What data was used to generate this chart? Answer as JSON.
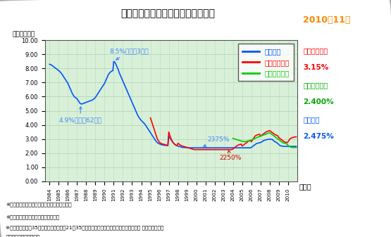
{
  "title": "民間金融機関の住宅ローン金利推移",
  "ylabel": "（年率・％）",
  "xlabel": "（年）",
  "bg_color": "#d8f0d8",
  "grid_color": "#b0d0b0",
  "ylim": [
    0.0,
    10.0
  ],
  "yticks": [
    0.0,
    1.0,
    2.0,
    3.0,
    4.0,
    5.0,
    6.0,
    7.0,
    8.0,
    9.0,
    10.0
  ],
  "ytick_labels": [
    "0.00",
    "1.00",
    "2.00",
    "3.00",
    "4.00",
    "5.00",
    "6.00",
    "7.00",
    "8.00",
    "9.00",
    "10.00"
  ],
  "xtick_labels": [
    "1984",
    "1985",
    "1986",
    "1987",
    "1988",
    "1989",
    "1990",
    "1991",
    "1992",
    "1993",
    "1994",
    "1995",
    "1996",
    "1997",
    "1998",
    "1999",
    "2000",
    "2001",
    "2002",
    "2003",
    "2004",
    "2005",
    "2006",
    "2007",
    "2008",
    "2009",
    "2010"
  ],
  "years_dense": [
    1984.0,
    1984.1,
    1984.2,
    1984.3,
    1984.4,
    1984.5,
    1984.6,
    1984.7,
    1984.8,
    1984.9,
    1985.0,
    1985.1,
    1985.2,
    1985.3,
    1985.4,
    1985.5,
    1985.6,
    1985.7,
    1985.8,
    1985.9,
    1986.0,
    1986.1,
    1986.2,
    1986.3,
    1986.4,
    1986.5,
    1986.6,
    1986.7,
    1986.8,
    1986.9,
    1987.0,
    1987.1,
    1987.2,
    1987.3,
    1987.4,
    1987.5,
    1987.6,
    1987.7,
    1987.8,
    1987.9,
    1988.0,
    1988.1,
    1988.2,
    1988.3,
    1988.4,
    1988.5,
    1988.6,
    1988.7,
    1988.8,
    1988.9,
    1989.0,
    1989.1,
    1989.2,
    1989.3,
    1989.4,
    1989.5,
    1989.6,
    1989.7,
    1989.8,
    1989.9,
    1990.0,
    1990.1,
    1990.2,
    1990.3,
    1990.4,
    1990.5,
    1990.6,
    1990.7,
    1990.8,
    1990.9,
    1991.0,
    1991.1,
    1991.2,
    1991.3,
    1991.4,
    1991.5,
    1991.6,
    1991.7,
    1991.8,
    1991.9,
    1992.0,
    1992.1,
    1992.2,
    1992.3,
    1992.4,
    1992.5,
    1992.6,
    1992.7,
    1992.8,
    1992.9,
    1993.0,
    1993.1,
    1993.2,
    1993.3,
    1993.4,
    1993.5,
    1993.6,
    1993.7,
    1993.8,
    1993.9,
    1994.0,
    1994.1,
    1994.2,
    1994.3,
    1994.4,
    1994.5,
    1994.6,
    1994.7,
    1994.8,
    1994.9,
    1995.0,
    1995.1,
    1995.2,
    1995.3,
    1995.4,
    1995.5,
    1995.6,
    1995.7,
    1995.8,
    1995.9,
    1996.0,
    1996.1,
    1996.2,
    1996.3,
    1996.4,
    1996.5,
    1996.6,
    1996.7,
    1996.8,
    1996.9,
    1997.0,
    1997.1,
    1997.2,
    1997.3,
    1997.4,
    1997.5,
    1997.6,
    1997.7,
    1997.8,
    1997.9,
    1998.0,
    1998.1,
    1998.2,
    1998.3,
    1998.4,
    1998.5,
    1998.6,
    1998.7,
    1998.8,
    1998.9,
    1999.0,
    1999.1,
    1999.2,
    1999.3,
    1999.4,
    1999.5,
    1999.6,
    1999.7,
    1999.8,
    1999.9,
    2000.0,
    2000.1,
    2000.2,
    2000.3,
    2000.4,
    2000.5,
    2000.6,
    2000.7,
    2000.8,
    2000.9,
    2001.0,
    2001.1,
    2001.2,
    2001.3,
    2001.4,
    2001.5,
    2001.6,
    2001.7,
    2001.8,
    2001.9,
    2002.0,
    2002.1,
    2002.2,
    2002.3,
    2002.4,
    2002.5,
    2002.6,
    2002.7,
    2002.8,
    2002.9,
    2003.0,
    2003.1,
    2003.2,
    2003.3,
    2003.4,
    2003.5,
    2003.6,
    2003.7,
    2003.8,
    2003.9,
    2004.0,
    2004.1,
    2004.2,
    2004.3,
    2004.4,
    2004.5,
    2004.6,
    2004.7,
    2004.8,
    2004.9,
    2005.0,
    2005.1,
    2005.2,
    2005.3,
    2005.4,
    2005.5,
    2005.6,
    2005.7,
    2005.8,
    2005.9,
    2006.0,
    2006.1,
    2006.2,
    2006.3,
    2006.4,
    2006.5,
    2006.6,
    2006.7,
    2006.8,
    2006.9,
    2007.0,
    2007.1,
    2007.2,
    2007.3,
    2007.4,
    2007.5,
    2007.6,
    2007.7,
    2007.8,
    2007.9,
    2008.0,
    2008.1,
    2008.2,
    2008.3,
    2008.4,
    2008.5,
    2008.6,
    2008.7,
    2008.8,
    2008.9,
    2009.0,
    2009.1,
    2009.2,
    2009.3,
    2009.4,
    2009.5,
    2009.6,
    2009.7,
    2009.8,
    2009.9,
    2010.0,
    2010.1,
    2010.2,
    2010.3,
    2010.4,
    2010.5,
    2010.6,
    2010.7,
    2010.8,
    2010.9
  ],
  "variable_rate_dense": [
    8.3,
    8.28,
    8.25,
    8.2,
    8.15,
    8.1,
    8.05,
    8.0,
    7.95,
    7.9,
    7.85,
    7.8,
    7.72,
    7.65,
    7.55,
    7.45,
    7.35,
    7.25,
    7.15,
    7.05,
    6.95,
    6.8,
    6.65,
    6.5,
    6.35,
    6.2,
    6.1,
    6.0,
    5.95,
    5.9,
    5.85,
    5.75,
    5.65,
    5.55,
    5.5,
    5.48,
    5.5,
    5.52,
    5.55,
    5.58,
    5.6,
    5.62,
    5.65,
    5.68,
    5.7,
    5.72,
    5.75,
    5.78,
    5.82,
    5.88,
    5.95,
    6.05,
    6.15,
    6.25,
    6.35,
    6.45,
    6.55,
    6.65,
    6.75,
    6.85,
    6.95,
    7.1,
    7.25,
    7.4,
    7.55,
    7.65,
    7.72,
    7.78,
    7.82,
    7.85,
    8.5,
    8.45,
    8.35,
    8.2,
    8.05,
    7.9,
    7.7,
    7.55,
    7.4,
    7.25,
    7.1,
    6.95,
    6.8,
    6.65,
    6.5,
    6.35,
    6.2,
    6.05,
    5.9,
    5.75,
    5.6,
    5.45,
    5.3,
    5.15,
    5.0,
    4.85,
    4.7,
    4.58,
    4.48,
    4.4,
    4.32,
    4.25,
    4.18,
    4.12,
    4.05,
    3.95,
    3.85,
    3.75,
    3.65,
    3.55,
    3.45,
    3.35,
    3.25,
    3.15,
    3.05,
    2.95,
    2.85,
    2.78,
    2.72,
    2.68,
    2.65,
    2.62,
    2.6,
    2.58,
    2.57,
    2.56,
    2.55,
    2.55,
    2.54,
    2.53,
    3.2,
    3.1,
    3.0,
    2.9,
    2.8,
    2.72,
    2.65,
    2.6,
    2.55,
    2.52,
    2.5,
    2.48,
    2.46,
    2.44,
    2.42,
    2.4,
    2.4,
    2.4,
    2.4,
    2.38,
    2.375,
    2.375,
    2.375,
    2.375,
    2.375,
    2.375,
    2.375,
    2.375,
    2.375,
    2.375,
    2.375,
    2.375,
    2.375,
    2.375,
    2.375,
    2.375,
    2.375,
    2.375,
    2.375,
    2.375,
    2.375,
    2.375,
    2.375,
    2.375,
    2.375,
    2.375,
    2.375,
    2.375,
    2.375,
    2.375,
    2.375,
    2.375,
    2.375,
    2.375,
    2.375,
    2.375,
    2.375,
    2.375,
    2.375,
    2.375,
    2.375,
    2.375,
    2.375,
    2.375,
    2.375,
    2.375,
    2.375,
    2.375,
    2.375,
    2.375,
    2.375,
    2.375,
    2.375,
    2.375,
    2.375,
    2.375,
    2.375,
    2.375,
    2.375,
    2.375,
    2.375,
    2.375,
    2.375,
    2.375,
    2.375,
    2.375,
    2.375,
    2.375,
    2.375,
    2.375,
    2.4,
    2.45,
    2.5,
    2.55,
    2.6,
    2.65,
    2.68,
    2.7,
    2.72,
    2.74,
    2.75,
    2.78,
    2.82,
    2.87,
    2.9,
    2.92,
    2.94,
    2.96,
    2.97,
    2.98,
    2.99,
    2.98,
    2.97,
    2.96,
    2.9,
    2.84,
    2.8,
    2.78,
    2.72,
    2.68,
    2.6,
    2.55,
    2.52,
    2.5,
    2.49,
    2.48,
    2.47,
    2.476,
    2.476,
    2.476,
    2.475,
    2.475,
    2.475,
    2.475,
    2.475,
    2.475,
    2.475,
    2.475,
    2.475,
    2.475
  ],
  "fixed3_rate_dense": [
    null,
    null,
    null,
    null,
    null,
    null,
    null,
    null,
    null,
    null,
    null,
    null,
    null,
    null,
    null,
    null,
    null,
    null,
    null,
    null,
    null,
    null,
    null,
    null,
    null,
    null,
    null,
    null,
    null,
    null,
    null,
    null,
    null,
    null,
    null,
    null,
    null,
    null,
    null,
    null,
    null,
    null,
    null,
    null,
    null,
    null,
    null,
    null,
    null,
    null,
    null,
    null,
    null,
    null,
    null,
    null,
    null,
    null,
    null,
    null,
    null,
    null,
    null,
    null,
    null,
    null,
    null,
    null,
    null,
    null,
    null,
    null,
    null,
    null,
    null,
    null,
    null,
    null,
    null,
    null,
    null,
    null,
    null,
    null,
    null,
    null,
    null,
    null,
    null,
    null,
    null,
    null,
    null,
    null,
    null,
    null,
    null,
    null,
    null,
    null,
    null,
    null,
    null,
    null,
    null,
    null,
    null,
    null,
    null,
    null,
    4.5,
    4.3,
    4.1,
    3.9,
    3.7,
    3.5,
    3.3,
    3.1,
    2.95,
    2.85,
    2.75,
    2.7,
    2.68,
    2.65,
    2.63,
    2.62,
    2.6,
    2.58,
    2.56,
    2.54,
    3.5,
    3.3,
    3.1,
    2.95,
    2.82,
    2.72,
    2.65,
    2.6,
    2.55,
    2.52,
    2.7,
    2.65,
    2.6,
    2.55,
    2.52,
    2.5,
    2.48,
    2.46,
    2.44,
    2.42,
    2.4,
    2.38,
    2.36,
    2.34,
    2.32,
    2.3,
    2.28,
    2.26,
    2.25,
    2.25,
    2.25,
    2.25,
    2.25,
    2.25,
    2.25,
    2.25,
    2.25,
    2.25,
    2.25,
    2.25,
    2.25,
    2.25,
    2.25,
    2.25,
    2.25,
    2.25,
    2.25,
    2.25,
    2.25,
    2.25,
    2.25,
    2.25,
    2.25,
    2.25,
    2.25,
    2.25,
    2.25,
    2.25,
    2.25,
    2.25,
    2.25,
    2.25,
    2.25,
    2.25,
    2.25,
    2.25,
    2.25,
    2.25,
    2.25,
    2.25,
    2.3,
    2.35,
    2.4,
    2.45,
    2.5,
    2.55,
    2.58,
    2.6,
    2.62,
    2.64,
    2.5,
    2.55,
    2.6,
    2.65,
    2.7,
    2.75,
    2.8,
    2.85,
    2.88,
    2.9,
    2.8,
    2.9,
    3.0,
    3.1,
    3.2,
    3.25,
    3.28,
    3.3,
    3.32,
    3.34,
    3.2,
    3.25,
    3.3,
    3.35,
    3.4,
    3.45,
    3.5,
    3.52,
    3.55,
    3.58,
    3.6,
    3.55,
    3.5,
    3.45,
    3.4,
    3.35,
    3.3,
    3.28,
    3.25,
    3.22,
    3.1,
    3.05,
    3.0,
    2.95,
    2.9,
    2.85,
    2.8,
    2.78,
    2.76,
    2.75,
    2.8,
    2.9,
    3.0,
    3.05,
    3.08,
    3.1,
    3.12,
    3.14,
    3.15,
    3.15
  ],
  "flat35_rate_dense": [
    null,
    null,
    null,
    null,
    null,
    null,
    null,
    null,
    null,
    null,
    null,
    null,
    null,
    null,
    null,
    null,
    null,
    null,
    null,
    null,
    null,
    null,
    null,
    null,
    null,
    null,
    null,
    null,
    null,
    null,
    null,
    null,
    null,
    null,
    null,
    null,
    null,
    null,
    null,
    null,
    null,
    null,
    null,
    null,
    null,
    null,
    null,
    null,
    null,
    null,
    null,
    null,
    null,
    null,
    null,
    null,
    null,
    null,
    null,
    null,
    null,
    null,
    null,
    null,
    null,
    null,
    null,
    null,
    null,
    null,
    null,
    null,
    null,
    null,
    null,
    null,
    null,
    null,
    null,
    null,
    null,
    null,
    null,
    null,
    null,
    null,
    null,
    null,
    null,
    null,
    null,
    null,
    null,
    null,
    null,
    null,
    null,
    null,
    null,
    null,
    null,
    null,
    null,
    null,
    null,
    null,
    null,
    null,
    null,
    null,
    null,
    null,
    null,
    null,
    null,
    null,
    null,
    null,
    null,
    null,
    null,
    null,
    null,
    null,
    null,
    null,
    null,
    null,
    null,
    null,
    null,
    null,
    null,
    null,
    null,
    null,
    null,
    null,
    null,
    null,
    null,
    null,
    null,
    null,
    null,
    null,
    null,
    null,
    null,
    null,
    null,
    null,
    null,
    null,
    null,
    null,
    null,
    null,
    null,
    null,
    null,
    null,
    null,
    null,
    null,
    null,
    null,
    null,
    null,
    null,
    null,
    null,
    null,
    null,
    null,
    null,
    null,
    null,
    null,
    null,
    null,
    null,
    null,
    null,
    null,
    null,
    null,
    null,
    null,
    null,
    null,
    null,
    null,
    null,
    null,
    null,
    null,
    null,
    null,
    null,
    3.05,
    3.02,
    3.0,
    2.98,
    2.96,
    2.94,
    2.92,
    2.9,
    2.88,
    2.86,
    2.84,
    2.82,
    2.82,
    2.82,
    2.83,
    2.84,
    2.85,
    2.87,
    2.89,
    2.91,
    2.93,
    2.95,
    2.98,
    3.01,
    3.04,
    3.07,
    3.1,
    3.13,
    3.15,
    3.17,
    3.2,
    3.22,
    3.25,
    3.28,
    3.3,
    3.32,
    3.35,
    3.38,
    3.4,
    3.42,
    3.45,
    3.4,
    3.35,
    3.3,
    3.25,
    3.2,
    3.15,
    3.1,
    3.05,
    3.0,
    2.95,
    2.9,
    2.85,
    2.8,
    2.75,
    2.72,
    2.7,
    2.68,
    2.66,
    2.65,
    2.55,
    2.5,
    2.45,
    2.42,
    2.41,
    2.4,
    2.4,
    2.4,
    2.4,
    2.4
  ],
  "line_colors": {
    "variable": "#0055ff",
    "fixed3": "#ff0000",
    "flat35": "#00cc00"
  },
  "legend_labels": [
    "変動金利",
    "３年固定金利",
    "フラット３５"
  ],
  "footnote1": "※住宅金融支援機構公表のデータを元に編集。",
  "footnote2": "※主要都市銀行における金利を掲載。",
  "footnote3": "※最新のフラット35の金利は、返済期間21～35年タイプの金利の内、取り扱い金融機関が 提供する金利で",
  "footnote4": "　最も多いものを表示。",
  "sidebar_title": "2010年11月",
  "sidebar_fixed3_label": "３年固定金利",
  "sidebar_fixed3_val": "3.15%",
  "sidebar_flat35_label": "フラット３５",
  "sidebar_flat35_val": "2.400%",
  "sidebar_variable_label": "変動金利",
  "sidebar_variable_val": "2.475%"
}
